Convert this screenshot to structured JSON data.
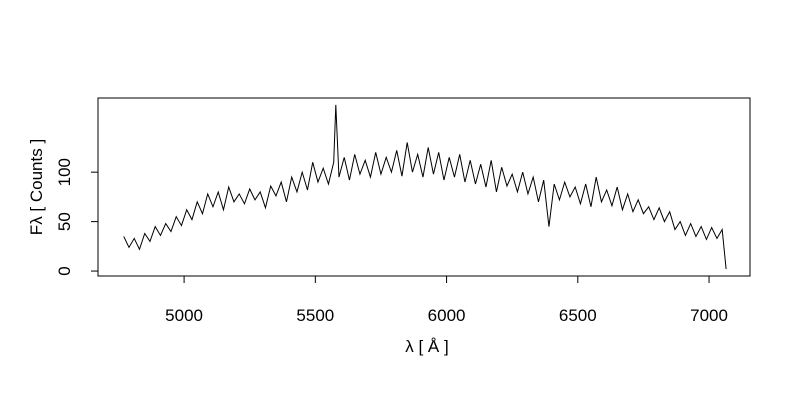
{
  "chart_data": {
    "type": "line",
    "xlabel": "λ [ Å ]",
    "ylabel": "Fλ [ Counts ]",
    "x": [
      4770,
      4790,
      4810,
      4830,
      4850,
      4870,
      4890,
      4910,
      4930,
      4950,
      4970,
      4990,
      5010,
      5030,
      5050,
      5070,
      5090,
      5110,
      5130,
      5150,
      5170,
      5190,
      5210,
      5230,
      5250,
      5270,
      5290,
      5310,
      5330,
      5350,
      5370,
      5390,
      5410,
      5430,
      5450,
      5470,
      5490,
      5510,
      5530,
      5550,
      5570,
      5578,
      5590,
      5610,
      5630,
      5650,
      5670,
      5690,
      5710,
      5730,
      5750,
      5770,
      5790,
      5810,
      5830,
      5850,
      5870,
      5890,
      5910,
      5930,
      5950,
      5970,
      5990,
      6010,
      6030,
      6050,
      6070,
      6090,
      6110,
      6130,
      6150,
      6170,
      6190,
      6210,
      6230,
      6250,
      6270,
      6290,
      6310,
      6330,
      6350,
      6370,
      6390,
      6410,
      6430,
      6450,
      6470,
      6490,
      6510,
      6530,
      6550,
      6570,
      6590,
      6610,
      6630,
      6650,
      6670,
      6690,
      6710,
      6730,
      6750,
      6770,
      6790,
      6810,
      6830,
      6850,
      6870,
      6890,
      6910,
      6930,
      6950,
      6970,
      6990,
      7010,
      7030,
      7050,
      7065
    ],
    "series": [
      {
        "color": "#000000",
        "values": [
          35,
          24,
          33,
          22,
          38,
          30,
          45,
          36,
          48,
          40,
          55,
          46,
          62,
          52,
          70,
          58,
          78,
          65,
          80,
          62,
          85,
          70,
          78,
          68,
          83,
          72,
          80,
          64,
          86,
          76,
          90,
          70,
          95,
          80,
          100,
          82,
          110,
          90,
          104,
          88,
          110,
          168,
          95,
          115,
          92,
          118,
          98,
          112,
          95,
          120,
          98,
          115,
          100,
          122,
          96,
          130,
          100,
          118,
          95,
          125,
          98,
          120,
          92,
          115,
          95,
          118,
          90,
          112,
          88,
          108,
          85,
          112,
          80,
          105,
          86,
          98,
          80,
          100,
          78,
          95,
          70,
          92,
          45,
          88,
          72,
          90,
          75,
          85,
          68,
          88,
          65,
          95,
          70,
          82,
          66,
          85,
          62,
          78,
          60,
          72,
          58,
          65,
          52,
          64,
          50,
          60,
          42,
          50,
          36,
          48,
          35,
          45,
          32,
          44,
          33,
          42,
          2
        ]
      }
    ],
    "xlim": [
      4672,
      7156
    ],
    "xticks": [
      5000,
      5500,
      6000,
      6500,
      7000
    ],
    "ylim": [
      -5,
      175
    ],
    "yticks": [
      0,
      50,
      100
    ]
  }
}
